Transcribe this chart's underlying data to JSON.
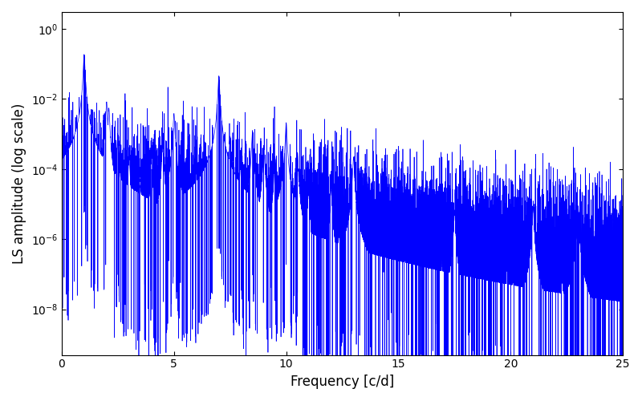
{
  "title": "",
  "xlabel": "Frequency [c/d]",
  "ylabel": "LS amplitude (log scale)",
  "xlim": [
    0,
    25
  ],
  "ylim_log": [
    5e-10,
    3.0
  ],
  "yticks": [
    1e-08,
    1e-06,
    0.0001,
    0.01,
    1.0
  ],
  "line_color": "#0000ff",
  "line_width": 0.5,
  "freq_max": 25.0,
  "n_points": 12000,
  "seed": 137,
  "background_color": "#ffffff",
  "figsize": [
    8.0,
    5.0
  ],
  "dpi": 100
}
